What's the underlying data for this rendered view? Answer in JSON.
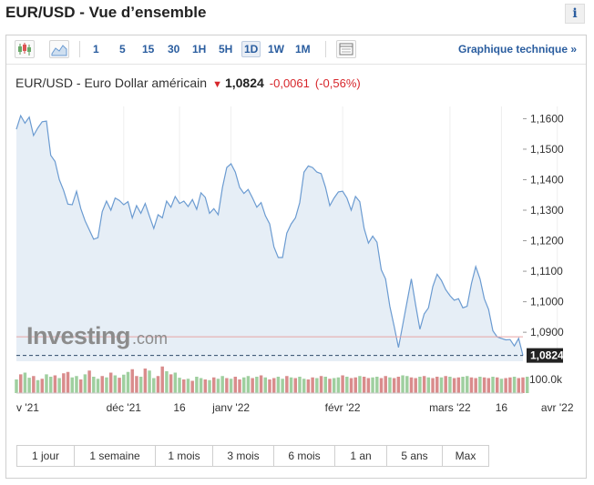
{
  "page": {
    "title": "EUR/USD - Vue d’ensemble",
    "info_label": "i"
  },
  "toolbar": {
    "intervals": [
      "1",
      "5",
      "15",
      "30",
      "1H",
      "5H",
      "1D",
      "1W",
      "1M"
    ],
    "active_interval": "1D",
    "technical_link": "Graphique technique »"
  },
  "instrument": {
    "name": "EUR/USD - Euro Dollar américain",
    "direction_icon": "down-arrow-icon",
    "last": "1,0824",
    "change": "-0,0061",
    "change_pct": "(-0,56%)"
  },
  "colors": {
    "line": "#6b9bd1",
    "area": "#e6eef6",
    "down": "#d7262b",
    "up_volume": "#9fcf9f",
    "down_volume": "#d98c8c",
    "link": "#2a5d9f"
  },
  "watermark": {
    "brand": "Investing",
    "suffix": ".com"
  },
  "range_buttons": [
    "1 jour",
    "1 semaine",
    "1 mois",
    "3 mois",
    "6 mois",
    "1 an",
    "5 ans",
    "Max"
  ],
  "chart_data": {
    "type": "area",
    "ylim": [
      1.0805,
      1.164
    ],
    "yticks": [
      "1,1600",
      "1,1500",
      "1,1400",
      "1,1300",
      "1,1200",
      "1,1100",
      "1,1000",
      "1,0900"
    ],
    "ytick_values": [
      1.16,
      1.15,
      1.14,
      1.13,
      1.12,
      1.11,
      1.1,
      1.09
    ],
    "last_price_label": "1,0824",
    "last_price": 1.0824,
    "previous_close": 1.0885,
    "volume_label": "100.0k",
    "xtick_labels": [
      "v '21",
      "déc '21",
      "16",
      "janv '22",
      "févr '22",
      "mars '22",
      "16",
      "avr '22"
    ],
    "xtick_index": [
      0,
      25,
      38,
      50,
      76,
      101,
      113,
      126
    ],
    "series": [
      {
        "values": [
          1.1565,
          1.161,
          1.1585,
          1.1605,
          1.1545,
          1.157,
          1.159,
          1.1592,
          1.148,
          1.146,
          1.14,
          1.1365,
          1.132,
          1.1318,
          1.1362,
          1.1305,
          1.1265,
          1.1235,
          1.1205,
          1.121,
          1.1295,
          1.133,
          1.13,
          1.134,
          1.1332,
          1.1318,
          1.1328,
          1.1275,
          1.1315,
          1.129,
          1.1322,
          1.128,
          1.124,
          1.1285,
          1.1275,
          1.133,
          1.131,
          1.1345,
          1.1322,
          1.133,
          1.1312,
          1.1335,
          1.1303,
          1.1357,
          1.1342,
          1.129,
          1.1305,
          1.1285,
          1.1375,
          1.144,
          1.1452,
          1.1425,
          1.1375,
          1.1355,
          1.1368,
          1.134,
          1.131,
          1.1325,
          1.1282,
          1.1255,
          1.118,
          1.1145,
          1.1145,
          1.1225,
          1.1255,
          1.1275,
          1.1325,
          1.1425,
          1.1445,
          1.144,
          1.1425,
          1.142,
          1.1375,
          1.1315,
          1.134,
          1.136,
          1.1362,
          1.134,
          1.13,
          1.1345,
          1.1328,
          1.124,
          1.1192,
          1.1215,
          1.1195,
          1.1105,
          1.1075,
          1.0985,
          1.092,
          1.085,
          1.0925,
          1.1,
          1.1075,
          1.099,
          1.091,
          1.096,
          1.098,
          1.105,
          1.109,
          1.107,
          1.104,
          1.102,
          1.1005,
          1.101,
          1.098,
          1.0985,
          1.106,
          1.1115,
          1.1075,
          1.101,
          1.0975,
          1.0905,
          1.0885,
          1.088,
          1.0875,
          1.0876,
          1.0855,
          1.088,
          1.0824
        ]
      }
    ],
    "volume_series": [
      {
        "values": [
          40,
          55,
          60,
          45,
          50,
          38,
          42,
          55,
          48,
          52,
          44,
          58,
          62,
          46,
          50,
          40,
          55,
          66,
          48,
          42,
          50,
          46,
          60,
          52,
          45,
          54,
          62,
          70,
          50,
          48,
          72,
          66,
          44,
          50,
          78,
          64,
          55,
          60,
          45,
          40,
          42,
          36,
          48,
          44,
          40,
          38,
          46,
          42,
          50,
          44,
          42,
          48,
          40,
          46,
          50,
          44,
          48,
          52,
          46,
          40,
          44,
          48,
          42,
          50,
          46,
          44,
          48,
          42,
          40,
          46,
          44,
          50,
          48,
          42,
          44,
          46,
          52,
          48,
          44,
          46,
          50,
          48,
          44,
          46,
          48,
          44,
          50,
          46,
          44,
          48,
          52,
          50,
          46,
          44,
          48,
          50,
          46,
          44,
          48,
          46,
          50,
          48,
          44,
          46,
          48,
          50,
          46,
          44,
          48,
          46,
          44,
          48,
          46,
          42,
          44,
          46,
          48,
          44,
          46,
          48
        ],
        "up": [
          1,
          0,
          1,
          1,
          0,
          1,
          0,
          1,
          1,
          0,
          1,
          0,
          0,
          1,
          1,
          0,
          1,
          0,
          1,
          1,
          0,
          1,
          0,
          1,
          0,
          1,
          1,
          0,
          0,
          1,
          0,
          1,
          1,
          0,
          0,
          1,
          0,
          1,
          1,
          0,
          1,
          0,
          1,
          1,
          0,
          1,
          0,
          1,
          1,
          0,
          1,
          0,
          0,
          1,
          1,
          0,
          1,
          0,
          1,
          0,
          0,
          1,
          1,
          0,
          1,
          0,
          1,
          1,
          0,
          0,
          1,
          0,
          1,
          0,
          1,
          1,
          0,
          1,
          0,
          0,
          1,
          0,
          0,
          1,
          1,
          0,
          0,
          1,
          0,
          0,
          1,
          1,
          0,
          0,
          1,
          0,
          1,
          0,
          0,
          1,
          0,
          1,
          0,
          0,
          1,
          1,
          0,
          0,
          1,
          0,
          0,
          1,
          0,
          1,
          0,
          0,
          1,
          0,
          0,
          1
        ]
      }
    ]
  }
}
